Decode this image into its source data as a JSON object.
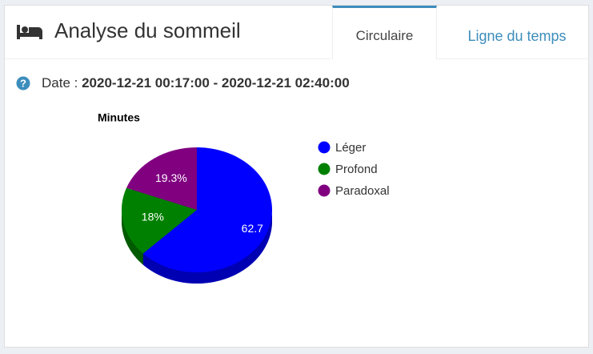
{
  "header": {
    "title": "Analyse du sommeil",
    "tabs": [
      "Circulaire",
      "Ligne du temps"
    ]
  },
  "date": {
    "label": "Date :",
    "range": "2020-12-21 00:17:00 - 2020-12-21 02:40:00"
  },
  "chart_data": {
    "type": "pie",
    "title": "Minutes",
    "categories": [
      "Léger",
      "Profond",
      "Paradoxal"
    ],
    "values": [
      62.7,
      18,
      19.3
    ],
    "value_labels": [
      "62.7",
      "18%",
      "19.3%"
    ],
    "colors": [
      "#0000ff",
      "#008000",
      "#800080"
    ],
    "side_colors": [
      "#0000b3",
      "#005a00",
      "#5a005a"
    ]
  }
}
